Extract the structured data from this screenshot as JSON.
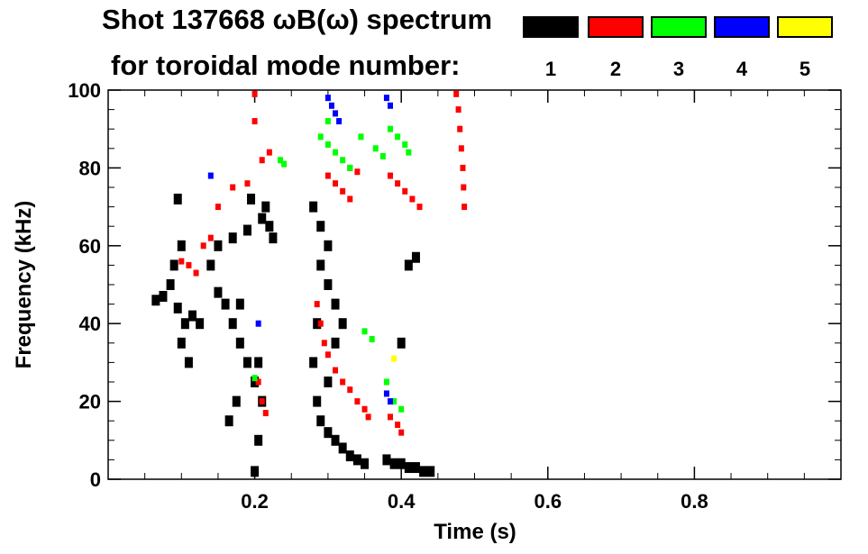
{
  "title": "Shot 137668 ωB(ω) spectrum",
  "subtitle": "for toroidal mode number:",
  "legend": [
    {
      "label": "1",
      "color": "#000000"
    },
    {
      "label": "2",
      "color": "#ff0000"
    },
    {
      "label": "3",
      "color": "#00ff00"
    },
    {
      "label": "4",
      "color": "#0000ff"
    },
    {
      "label": "5",
      "color": "#ffff00"
    }
  ],
  "chart_data": {
    "type": "heatmap",
    "title": "Shot 137668 ωB(ω) spectrum",
    "xlabel": "Time (s)",
    "ylabel": "Frequency (kHz)",
    "xlim": [
      0.0,
      1.0
    ],
    "ylim": [
      0,
      100
    ],
    "x_ticks": [
      0.2,
      0.4,
      0.6,
      0.8
    ],
    "x_tick_labels": [
      "0.2",
      "0.4",
      "0.6",
      "0.8"
    ],
    "y_ticks": [
      0,
      20,
      40,
      60,
      80,
      100
    ],
    "y_tick_labels": [
      "0",
      "20",
      "40",
      "60",
      "80",
      "100"
    ],
    "grid": false,
    "legend_position": "top-right",
    "series": [
      {
        "mode": 1,
        "color": "#000000",
        "points": [
          [
            0.065,
            46
          ],
          [
            0.075,
            47
          ],
          [
            0.085,
            50
          ],
          [
            0.095,
            44
          ],
          [
            0.105,
            40
          ],
          [
            0.115,
            42
          ],
          [
            0.125,
            40
          ],
          [
            0.1,
            35
          ],
          [
            0.11,
            30
          ],
          [
            0.09,
            55
          ],
          [
            0.1,
            60
          ],
          [
            0.095,
            72
          ],
          [
            0.14,
            55
          ],
          [
            0.15,
            48
          ],
          [
            0.16,
            45
          ],
          [
            0.17,
            40
          ],
          [
            0.18,
            35
          ],
          [
            0.19,
            30
          ],
          [
            0.2,
            25
          ],
          [
            0.15,
            60
          ],
          [
            0.17,
            62
          ],
          [
            0.19,
            64
          ],
          [
            0.21,
            67
          ],
          [
            0.22,
            65
          ],
          [
            0.225,
            62
          ],
          [
            0.215,
            70
          ],
          [
            0.195,
            72
          ],
          [
            0.205,
            30
          ],
          [
            0.21,
            20
          ],
          [
            0.205,
            10
          ],
          [
            0.2,
            2
          ],
          [
            0.175,
            20
          ],
          [
            0.165,
            15
          ],
          [
            0.18,
            45
          ],
          [
            0.28,
            70
          ],
          [
            0.29,
            65
          ],
          [
            0.3,
            60
          ],
          [
            0.29,
            55
          ],
          [
            0.3,
            50
          ],
          [
            0.31,
            45
          ],
          [
            0.32,
            40
          ],
          [
            0.285,
            40
          ],
          [
            0.28,
            30
          ],
          [
            0.285,
            20
          ],
          [
            0.29,
            15
          ],
          [
            0.3,
            12
          ],
          [
            0.31,
            10
          ],
          [
            0.32,
            8
          ],
          [
            0.33,
            6
          ],
          [
            0.34,
            5
          ],
          [
            0.35,
            4
          ],
          [
            0.31,
            35
          ],
          [
            0.3,
            25
          ],
          [
            0.38,
            5
          ],
          [
            0.39,
            4
          ],
          [
            0.4,
            4
          ],
          [
            0.41,
            3
          ],
          [
            0.42,
            3
          ],
          [
            0.43,
            2
          ],
          [
            0.44,
            2
          ],
          [
            0.4,
            35
          ],
          [
            0.41,
            55
          ],
          [
            0.42,
            57
          ]
        ]
      },
      {
        "mode": 2,
        "color": "#ff0000",
        "points": [
          [
            0.1,
            56
          ],
          [
            0.11,
            55
          ],
          [
            0.12,
            53
          ],
          [
            0.13,
            60
          ],
          [
            0.14,
            62
          ],
          [
            0.15,
            70
          ],
          [
            0.17,
            75
          ],
          [
            0.19,
            76
          ],
          [
            0.21,
            82
          ],
          [
            0.22,
            84
          ],
          [
            0.2,
            92
          ],
          [
            0.2,
            99
          ],
          [
            0.205,
            25
          ],
          [
            0.21,
            20
          ],
          [
            0.215,
            17
          ],
          [
            0.285,
            45
          ],
          [
            0.29,
            40
          ],
          [
            0.295,
            35
          ],
          [
            0.3,
            32
          ],
          [
            0.31,
            28
          ],
          [
            0.32,
            25
          ],
          [
            0.33,
            23
          ],
          [
            0.34,
            20
          ],
          [
            0.35,
            18
          ],
          [
            0.355,
            16
          ],
          [
            0.3,
            78
          ],
          [
            0.31,
            76
          ],
          [
            0.32,
            74
          ],
          [
            0.33,
            72
          ],
          [
            0.33,
            80
          ],
          [
            0.34,
            79
          ],
          [
            0.385,
            78
          ],
          [
            0.395,
            76
          ],
          [
            0.405,
            74
          ],
          [
            0.415,
            72
          ],
          [
            0.425,
            70
          ],
          [
            0.385,
            16
          ],
          [
            0.395,
            14
          ],
          [
            0.4,
            12
          ],
          [
            0.475,
            99
          ],
          [
            0.478,
            95
          ],
          [
            0.48,
            90
          ],
          [
            0.482,
            85
          ],
          [
            0.484,
            80
          ],
          [
            0.485,
            75
          ],
          [
            0.486,
            70
          ]
        ]
      },
      {
        "mode": 3,
        "color": "#00ff00",
        "points": [
          [
            0.235,
            82
          ],
          [
            0.24,
            81
          ],
          [
            0.29,
            88
          ],
          [
            0.3,
            86
          ],
          [
            0.31,
            84
          ],
          [
            0.32,
            82
          ],
          [
            0.33,
            80
          ],
          [
            0.3,
            92
          ],
          [
            0.345,
            88
          ],
          [
            0.365,
            85
          ],
          [
            0.375,
            83
          ],
          [
            0.385,
            90
          ],
          [
            0.395,
            88
          ],
          [
            0.405,
            86
          ],
          [
            0.41,
            84
          ],
          [
            0.35,
            38
          ],
          [
            0.36,
            36
          ],
          [
            0.38,
            25
          ],
          [
            0.39,
            20
          ],
          [
            0.4,
            18
          ],
          [
            0.2,
            26
          ]
        ]
      },
      {
        "mode": 4,
        "color": "#0000ff",
        "points": [
          [
            0.3,
            98
          ],
          [
            0.305,
            96
          ],
          [
            0.31,
            94
          ],
          [
            0.315,
            92
          ],
          [
            0.38,
            98
          ],
          [
            0.385,
            96
          ],
          [
            0.38,
            22
          ],
          [
            0.385,
            20
          ],
          [
            0.205,
            40
          ],
          [
            0.14,
            78
          ]
        ]
      },
      {
        "mode": 5,
        "color": "#ffff00",
        "points": [
          [
            0.39,
            31
          ]
        ]
      }
    ]
  }
}
